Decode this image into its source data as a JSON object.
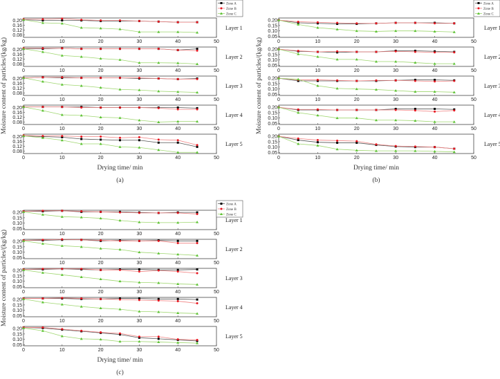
{
  "chart_data": [
    {
      "type": "line",
      "caption": "(a)",
      "xlabel": "Drying time/ min",
      "ylabel": "Moisture content of particles/(kg/kg)",
      "xlim": [
        0,
        50
      ],
      "xticks": [
        0,
        10,
        20,
        30,
        40,
        50
      ],
      "ylim": [
        0.06,
        0.22
      ],
      "yticks": [
        "0.08",
        "0.12",
        "0.16",
        "0.20"
      ],
      "legend": [
        "Zone A",
        "Zone B",
        "Zone C"
      ],
      "legend_placement": "top-right",
      "x": [
        0,
        5,
        10,
        15,
        20,
        25,
        30,
        35,
        40,
        45
      ],
      "layers": [
        {
          "name": "Layer 1",
          "series": [
            {
              "name": "Zone A",
              "values": [
                0.205,
                0.2,
                0.2,
                0.2,
                0.195,
                0.195,
                0.195,
                0.19,
                0.185,
                0.185
              ]
            },
            {
              "name": "Zone B",
              "values": [
                0.21,
                0.21,
                0.215,
                0.205,
                0.2,
                0.2,
                0.195,
                0.19,
                0.185,
                0.185
              ]
            },
            {
              "name": "Zone C",
              "values": [
                0.205,
                0.18,
                0.175,
                0.14,
                0.135,
                0.128,
                0.105,
                0.105,
                0.105,
                0.1
              ]
            }
          ]
        },
        {
          "name": "Layer 2",
          "series": [
            {
              "name": "Zone A",
              "values": [
                0.205,
                0.205,
                0.21,
                0.205,
                0.205,
                0.205,
                0.205,
                0.205,
                0.195,
                0.205
              ]
            },
            {
              "name": "Zone B",
              "values": [
                0.21,
                0.21,
                0.21,
                0.205,
                0.205,
                0.205,
                0.205,
                0.205,
                0.195,
                0.19
              ]
            },
            {
              "name": "Zone C",
              "values": [
                0.205,
                0.18,
                0.15,
                0.14,
                0.125,
                0.115,
                0.09,
                0.09,
                0.088,
                0.08
              ]
            }
          ]
        },
        {
          "name": "Layer 3",
          "series": [
            {
              "name": "Zone A",
              "values": [
                0.205,
                0.21,
                0.205,
                0.205,
                0.205,
                0.205,
                0.2,
                0.2,
                0.195,
                0.2
              ]
            },
            {
              "name": "Zone B",
              "values": [
                0.205,
                0.21,
                0.21,
                0.205,
                0.205,
                0.205,
                0.205,
                0.2,
                0.195,
                0.195
              ]
            },
            {
              "name": "Zone C",
              "values": [
                0.205,
                0.175,
                0.15,
                0.14,
                0.125,
                0.11,
                0.105,
                0.095,
                0.09,
                0.085
              ]
            }
          ]
        },
        {
          "name": "Layer 4",
          "series": [
            {
              "name": "Zone A",
              "values": [
                0.205,
                0.205,
                0.205,
                0.205,
                0.2,
                0.2,
                0.2,
                0.2,
                0.2,
                0.195
              ]
            },
            {
              "name": "Zone B",
              "values": [
                0.205,
                0.205,
                0.205,
                0.2,
                0.2,
                0.2,
                0.2,
                0.195,
                0.185,
                0.185
              ]
            },
            {
              "name": "Zone C",
              "values": [
                0.205,
                0.175,
                0.14,
                0.135,
                0.12,
                0.115,
                0.095,
                0.08,
                0.085,
                0.085
              ]
            }
          ]
        },
        {
          "name": "Layer 5",
          "series": [
            {
              "name": "Zone A",
              "values": [
                0.205,
                0.2,
                0.195,
                0.18,
                0.175,
                0.17,
                0.17,
                0.15,
                0.15,
                0.115
              ]
            },
            {
              "name": "Zone B",
              "values": [
                0.21,
                0.205,
                0.205,
                0.2,
                0.2,
                0.19,
                0.195,
                0.175,
                0.17,
                0.13
              ]
            },
            {
              "name": "Zone C",
              "values": [
                0.205,
                0.19,
                0.17,
                0.14,
                0.14,
                0.115,
                0.11,
                0.09,
                0.07,
                0.07
              ]
            }
          ]
        }
      ]
    },
    {
      "type": "line",
      "caption": "(b)",
      "xlabel": "Drying time/ min",
      "ylabel": "Moisture content of particles/(kg/kg)",
      "xlim": [
        0,
        50
      ],
      "xticks": [
        0,
        10,
        20,
        30,
        40,
        50
      ],
      "ylim": [
        0.04,
        0.22
      ],
      "yticks": [
        "0.05",
        "0.10",
        "0.15",
        "0.20"
      ],
      "legend": [
        "Zone A",
        "Zone B",
        "Zone C"
      ],
      "legend_placement": "top-right",
      "x": [
        0,
        5,
        10,
        15,
        20,
        25,
        30,
        35,
        40,
        45
      ],
      "layers": [
        {
          "name": "Layer 1",
          "series": [
            {
              "name": "Zone A",
              "values": [
                0.2,
                0.175,
                0.17,
                0.165,
                0.165,
                0.17,
                0.175,
                0.175,
                0.175,
                0.17
              ]
            },
            {
              "name": "Zone B",
              "values": [
                0.2,
                0.185,
                0.18,
                0.175,
                0.17,
                0.17,
                0.175,
                0.175,
                0.17,
                0.17
              ]
            },
            {
              "name": "Zone C",
              "values": [
                0.2,
                0.16,
                0.13,
                0.115,
                0.1,
                0.095,
                0.1,
                0.1,
                0.095,
                0.09
              ]
            }
          ]
        },
        {
          "name": "Layer 2",
          "series": [
            {
              "name": "Zone A",
              "values": [
                0.2,
                0.18,
                0.175,
                0.17,
                0.175,
                0.175,
                0.185,
                0.185,
                0.18,
                0.175
              ]
            },
            {
              "name": "Zone B",
              "values": [
                0.2,
                0.185,
                0.175,
                0.18,
                0.175,
                0.175,
                0.18,
                0.175,
                0.17,
                0.17
              ]
            },
            {
              "name": "Zone C",
              "values": [
                0.2,
                0.155,
                0.13,
                0.105,
                0.105,
                0.085,
                0.085,
                0.075,
                0.065,
                0.065
              ]
            }
          ]
        },
        {
          "name": "Layer 3",
          "series": [
            {
              "name": "Zone A",
              "values": [
                0.2,
                0.175,
                0.175,
                0.175,
                0.175,
                0.175,
                0.18,
                0.185,
                0.185,
                0.18
              ]
            },
            {
              "name": "Zone B",
              "values": [
                0.2,
                0.185,
                0.185,
                0.18,
                0.175,
                0.18,
                0.18,
                0.175,
                0.17,
                0.175
              ]
            },
            {
              "name": "Zone C",
              "values": [
                0.2,
                0.19,
                0.13,
                0.105,
                0.1,
                0.095,
                0.085,
                0.075,
                0.075,
                0.07
              ]
            }
          ]
        },
        {
          "name": "Layer 4",
          "series": [
            {
              "name": "Zone A",
              "values": [
                0.2,
                0.175,
                0.175,
                0.175,
                0.175,
                0.175,
                0.185,
                0.185,
                0.185,
                0.18
              ]
            },
            {
              "name": "Zone B",
              "values": [
                0.2,
                0.18,
                0.18,
                0.175,
                0.175,
                0.175,
                0.175,
                0.17,
                0.16,
                0.17
              ]
            },
            {
              "name": "Zone C",
              "values": [
                0.2,
                0.15,
                0.125,
                0.1,
                0.1,
                0.08,
                0.08,
                0.075,
                0.065,
                0.065
              ]
            }
          ]
        },
        {
          "name": "Layer 5",
          "series": [
            {
              "name": "Zone A",
              "values": [
                0.2,
                0.165,
                0.145,
                0.14,
                0.14,
                0.12,
                0.105,
                0.1,
                0.1,
                0.085
              ]
            },
            {
              "name": "Zone B",
              "values": [
                0.2,
                0.18,
                0.165,
                0.16,
                0.155,
                0.125,
                0.11,
                0.105,
                0.1,
                0.085
              ]
            },
            {
              "name": "Zone C",
              "values": [
                0.2,
                0.13,
                0.115,
                0.08,
                0.07,
                0.065,
                0.065,
                0.065,
                0.06,
                0.055
              ]
            }
          ]
        }
      ]
    },
    {
      "type": "line",
      "caption": "(c)",
      "xlabel": "Drying time/ min",
      "ylabel": "Moisture content of particles/(kg/kg)",
      "xlim": [
        0,
        50
      ],
      "xticks": [
        0,
        10,
        20,
        30,
        40,
        50
      ],
      "ylim": [
        0.04,
        0.22
      ],
      "yticks": [
        "0.05",
        "0.10",
        "0.15",
        "0.20"
      ],
      "legend": [
        "Zone A",
        "Zone B",
        "Zone C"
      ],
      "legend_placement": "top-right",
      "x": [
        0,
        5,
        10,
        15,
        20,
        25,
        30,
        35,
        40,
        45
      ],
      "layers": [
        {
          "name": "Layer 1",
          "series": [
            {
              "name": "Zone A",
              "values": [
                0.21,
                0.21,
                0.215,
                0.205,
                0.205,
                0.205,
                0.2,
                0.195,
                0.2,
                0.2
              ]
            },
            {
              "name": "Zone B",
              "values": [
                0.21,
                0.215,
                0.215,
                0.21,
                0.205,
                0.2,
                0.195,
                0.195,
                0.195,
                0.185
              ]
            },
            {
              "name": "Zone C",
              "values": [
                0.205,
                0.18,
                0.16,
                0.155,
                0.145,
                0.125,
                0.11,
                0.105,
                0.105,
                0.11
              ]
            }
          ]
        },
        {
          "name": "Layer 2",
          "series": [
            {
              "name": "Zone A",
              "values": [
                0.21,
                0.21,
                0.215,
                0.215,
                0.205,
                0.21,
                0.205,
                0.21,
                0.205,
                0.205
              ]
            },
            {
              "name": "Zone B",
              "values": [
                0.21,
                0.215,
                0.22,
                0.215,
                0.21,
                0.205,
                0.205,
                0.205,
                0.185,
                0.185
              ]
            },
            {
              "name": "Zone C",
              "values": [
                0.205,
                0.18,
                0.16,
                0.15,
                0.135,
                0.125,
                0.1,
                0.09,
                0.08,
                0.07
              ]
            }
          ]
        },
        {
          "name": "Layer 3",
          "series": [
            {
              "name": "Zone A",
              "values": [
                0.21,
                0.21,
                0.215,
                0.21,
                0.205,
                0.21,
                0.21,
                0.205,
                0.205,
                0.21
              ]
            },
            {
              "name": "Zone B",
              "values": [
                0.21,
                0.215,
                0.215,
                0.215,
                0.205,
                0.205,
                0.19,
                0.2,
                0.19,
                0.175
              ]
            },
            {
              "name": "Zone C",
              "values": [
                0.205,
                0.18,
                0.16,
                0.14,
                0.12,
                0.1,
                0.09,
                0.085,
                0.075,
                0.07
              ]
            }
          ]
        },
        {
          "name": "Layer 4",
          "series": [
            {
              "name": "Zone A",
              "values": [
                0.21,
                0.21,
                0.21,
                0.205,
                0.205,
                0.21,
                0.21,
                0.205,
                0.205,
                0.2
              ]
            },
            {
              "name": "Zone B",
              "values": [
                0.21,
                0.21,
                0.215,
                0.21,
                0.205,
                0.2,
                0.195,
                0.19,
                0.185,
                0.165
              ]
            },
            {
              "name": "Zone C",
              "values": [
                0.205,
                0.175,
                0.155,
                0.135,
                0.12,
                0.11,
                0.09,
                0.085,
                0.075,
                0.07
              ]
            }
          ]
        },
        {
          "name": "Layer 5",
          "series": [
            {
              "name": "Zone A",
              "values": [
                0.21,
                0.205,
                0.19,
                0.175,
                0.16,
                0.145,
                0.115,
                0.105,
                0.095,
                0.085
              ]
            },
            {
              "name": "Zone B",
              "values": [
                0.21,
                0.21,
                0.195,
                0.18,
                0.165,
                0.155,
                0.125,
                0.125,
                0.1,
                0.095
              ]
            },
            {
              "name": "Zone C",
              "values": [
                0.205,
                0.18,
                0.13,
                0.105,
                0.1,
                0.08,
                0.08,
                0.075,
                0.07,
                0.065
              ]
            }
          ]
        }
      ]
    }
  ],
  "colors": {
    "Zone A": {
      "line": "#555555",
      "marker": "#000000"
    },
    "Zone B": {
      "line": "#f08080",
      "marker": "#e8141e"
    },
    "Zone C": {
      "line": "#9ed66e",
      "marker": "#5cc234"
    }
  }
}
